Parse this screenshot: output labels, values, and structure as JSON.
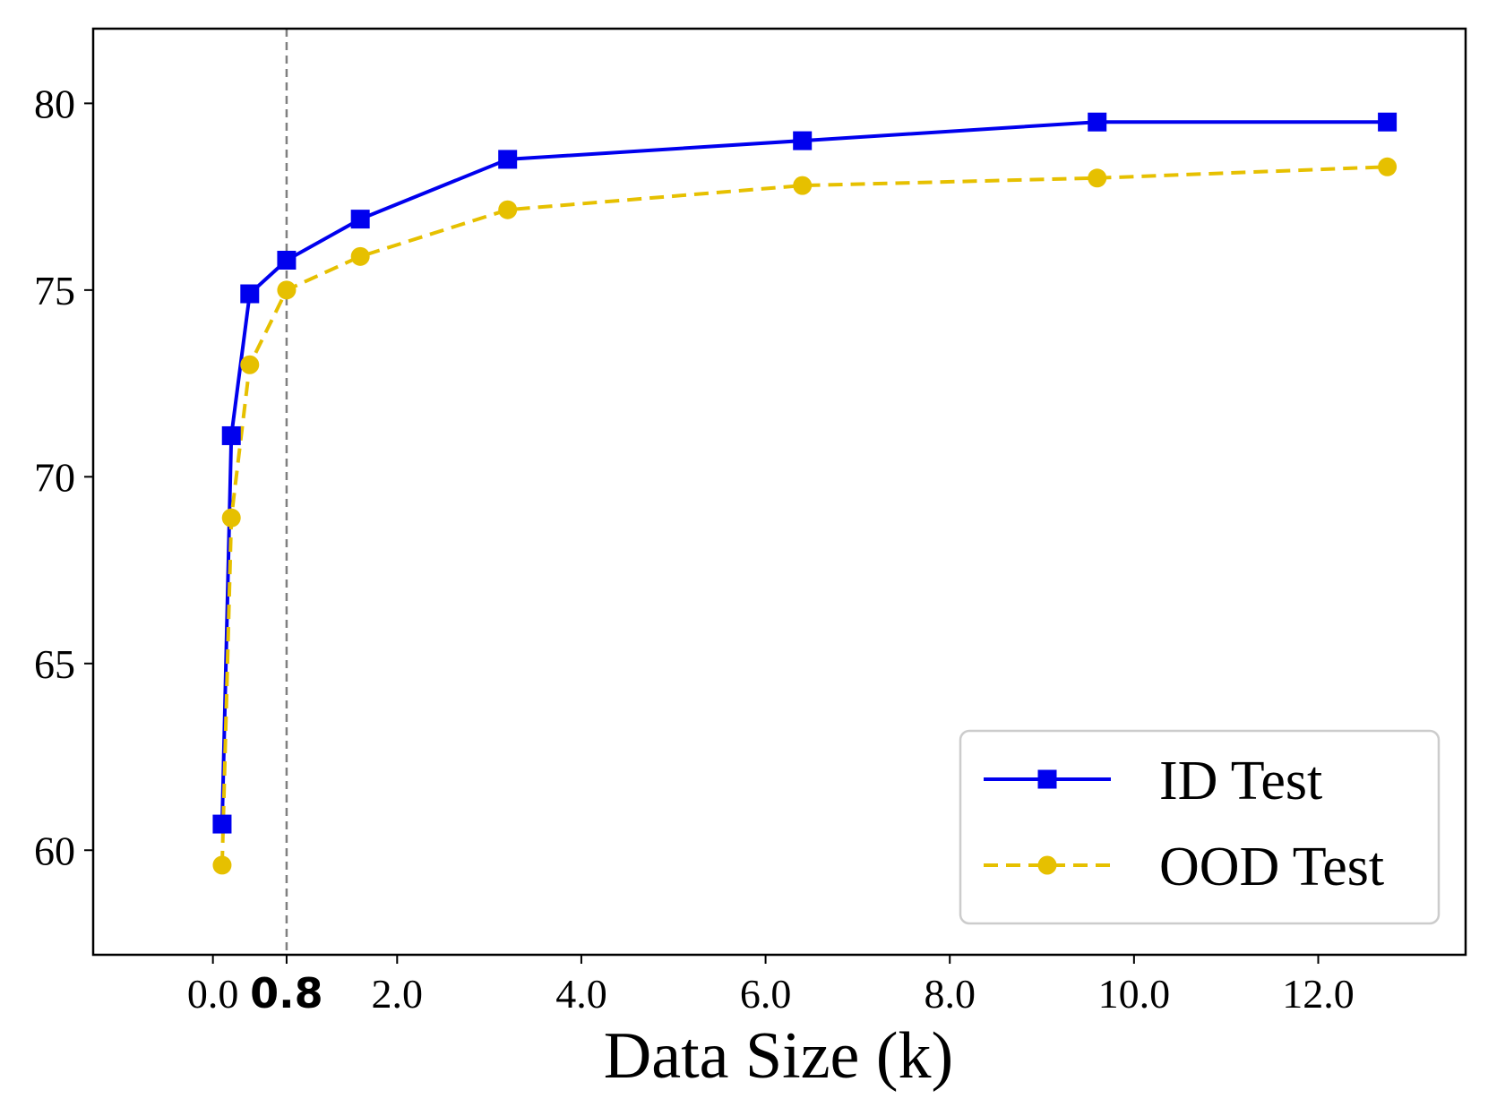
{
  "chart_data": {
    "type": "line",
    "title": "",
    "xlabel": "Data Size (k)",
    "ylabel": "",
    "xlim": [
      -1.3,
      13.6
    ],
    "ylim": [
      57.2,
      82.0
    ],
    "x_ticks": [
      {
        "value": 0.0,
        "label": "0.0"
      },
      {
        "value": 0.8,
        "label": "0.8",
        "bold": true
      },
      {
        "value": 2.0,
        "label": "2.0"
      },
      {
        "value": 4.0,
        "label": "4.0"
      },
      {
        "value": 6.0,
        "label": "6.0"
      },
      {
        "value": 8.0,
        "label": "8.0"
      },
      {
        "value": 10.0,
        "label": "10.0"
      },
      {
        "value": 12.0,
        "label": "12.0"
      }
    ],
    "y_ticks": [
      {
        "value": 60,
        "label": "60"
      },
      {
        "value": 65,
        "label": "65"
      },
      {
        "value": 70,
        "label": "70"
      },
      {
        "value": 75,
        "label": "75"
      },
      {
        "value": 80,
        "label": "80"
      }
    ],
    "vline": {
      "x": 0.8,
      "color": "#808080",
      "style": "dashed"
    },
    "grid": false,
    "legend_position": "lower-right",
    "series": [
      {
        "name": "ID Test",
        "color": "#0000ee",
        "marker": "square",
        "line_style": "solid",
        "x": [
          0.1,
          0.2,
          0.4,
          0.8,
          1.6,
          3.2,
          6.4,
          9.6,
          12.75
        ],
        "y": [
          60.7,
          71.1,
          74.9,
          75.8,
          76.9,
          78.5,
          79.0,
          79.5,
          79.5
        ]
      },
      {
        "name": "OOD Test",
        "color": "#e6c000",
        "marker": "circle",
        "line_style": "dashed",
        "x": [
          0.1,
          0.2,
          0.4,
          0.8,
          1.6,
          3.2,
          6.4,
          9.6,
          12.75
        ],
        "y": [
          59.6,
          68.9,
          73.0,
          75.0,
          75.9,
          77.15,
          77.8,
          78.0,
          78.3
        ]
      }
    ]
  }
}
